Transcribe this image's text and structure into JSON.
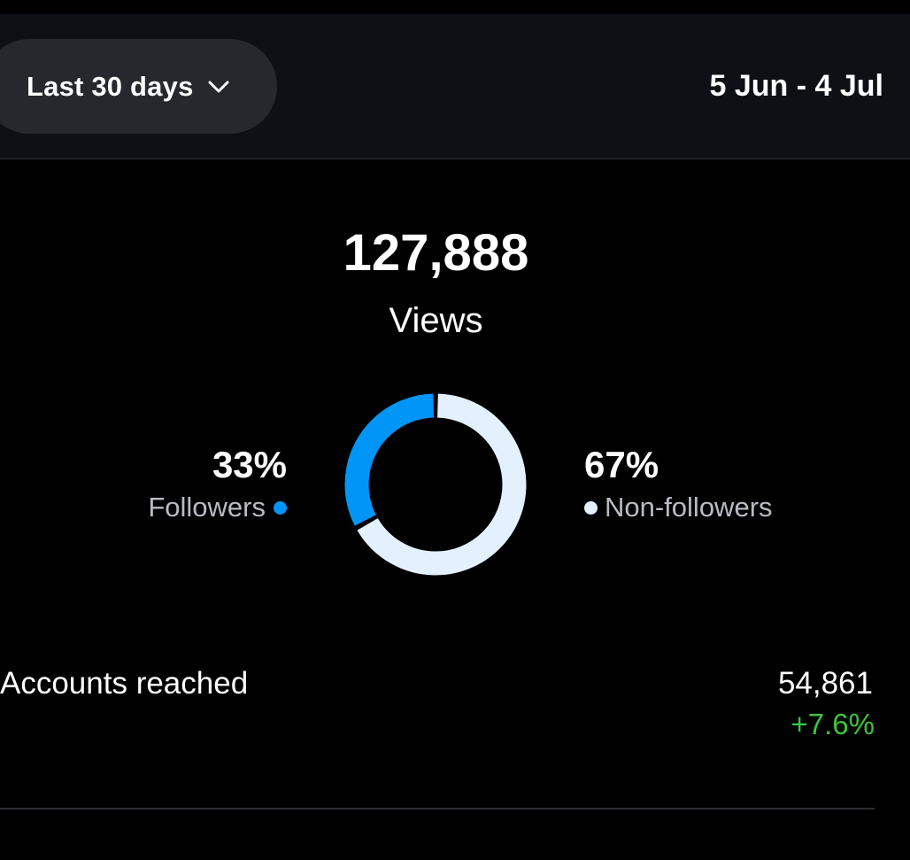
{
  "header": {
    "range_selector": "Last 30 days",
    "date_range": "5 Jun - 4 Jul"
  },
  "summary": {
    "total": "127,888",
    "total_label": "Views"
  },
  "breakdown": {
    "followers": {
      "percent": "33%",
      "label": "Followers",
      "value": 33,
      "color": "#0095f6"
    },
    "non_followers": {
      "percent": "67%",
      "label": "Non-followers",
      "value": 67,
      "color": "#e3f1ff"
    }
  },
  "metrics": [
    {
      "label": "Accounts reached",
      "value": "54,861",
      "change": "+7.6%",
      "change_color": "#3ec33e"
    }
  ],
  "icons": {
    "dropdown": "chevron-down-icon"
  }
}
